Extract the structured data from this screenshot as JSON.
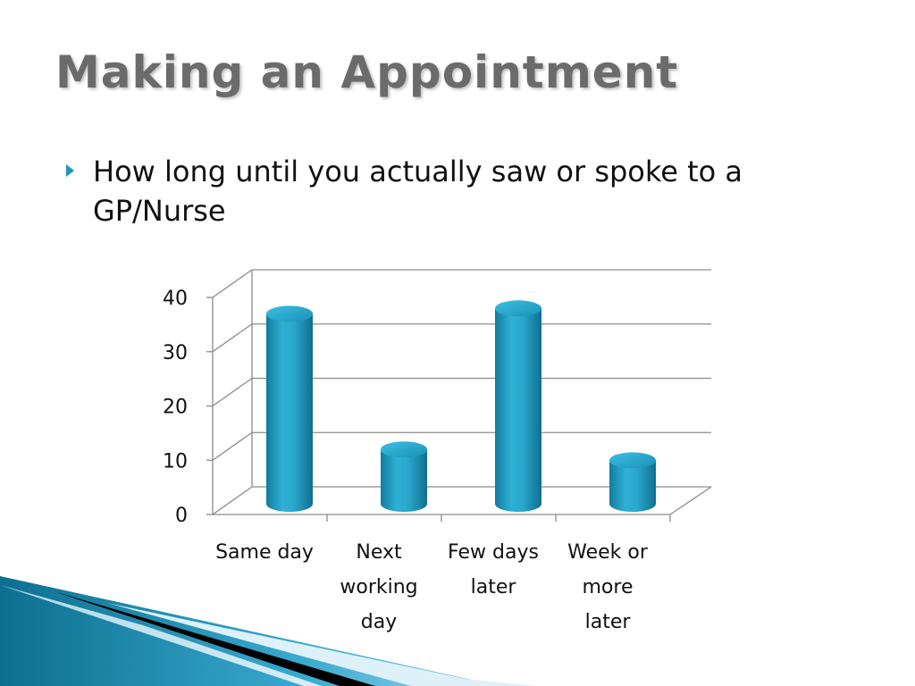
{
  "slide": {
    "title": "Making an Appointment",
    "bullet": "How long until you actually saw or spoke to a GP/Nurse"
  },
  "colors": {
    "title": "#6b6b6b",
    "bar": "#2aa6cc",
    "accent": "#1f97b8"
  },
  "chart_data": {
    "type": "bar",
    "style": "3d-cylinder",
    "categories": [
      [
        "Same day"
      ],
      [
        "Next",
        "working",
        "day"
      ],
      [
        "Few days",
        "later"
      ],
      [
        "Week or",
        "more",
        "later"
      ]
    ],
    "values": [
      35,
      10,
      36,
      8
    ],
    "yticks": [
      "0",
      "10",
      "20",
      "30",
      "40"
    ],
    "ylim": [
      0,
      40
    ],
    "grid": true,
    "legend": "none"
  }
}
